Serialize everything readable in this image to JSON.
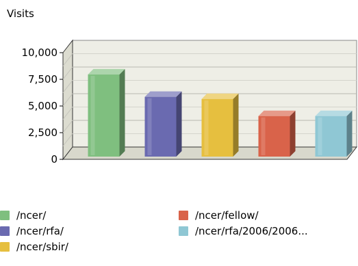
{
  "chart_data": {
    "type": "bar",
    "title": "",
    "ylabel": "Visits",
    "xlabel": "",
    "ylim": [
      0,
      10000
    ],
    "yticks": [
      "10,000",
      "7,500",
      "5,000",
      "2,500",
      "0"
    ],
    "grid": true,
    "style": "3d",
    "legend_position": "bottom",
    "categories": [
      "/ncer/",
      "/ncer/rfa/",
      "/ncer/sbir/",
      "/ncer/fellow/",
      "/ncer/rfa/2006/2006..."
    ],
    "values": [
      7700,
      5600,
      5400,
      3800,
      3800
    ],
    "colors": [
      "#7fbf7f",
      "#6a6ab0",
      "#e6bf3f",
      "#d9634a",
      "#8fc7d4"
    ]
  }
}
